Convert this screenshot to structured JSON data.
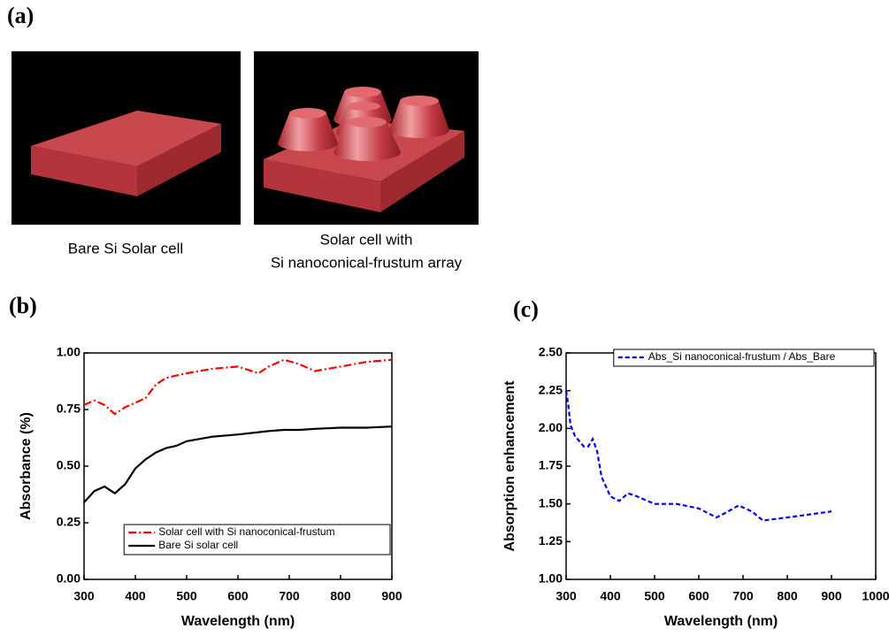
{
  "figure": {
    "panel_labels": [
      "(a)",
      "(b)",
      "(c)"
    ],
    "captions": [
      [
        "Bare Si Solar cell"
      ],
      [
        "Solar cell with",
        "Si nanoconical-frustum array"
      ]
    ]
  },
  "chart_data": [
    {
      "type": "line",
      "x_label": "Wavelength (nm)",
      "y_label": "Absorbance (%)",
      "x": [
        300,
        320,
        340,
        360,
        380,
        400,
        420,
        440,
        460,
        480,
        500,
        550,
        600,
        640,
        660,
        690,
        720,
        750,
        800,
        850,
        900
      ],
      "series": [
        {
          "name": "Solar cell with Si nanoconical-frustum",
          "color": "#ff0000",
          "dash": "dashdot",
          "values": [
            0.77,
            0.79,
            0.77,
            0.73,
            0.76,
            0.78,
            0.8,
            0.86,
            0.89,
            0.9,
            0.91,
            0.93,
            0.94,
            0.91,
            0.94,
            0.97,
            0.95,
            0.92,
            0.94,
            0.96,
            0.97
          ]
        },
        {
          "name": "Bare Si solar cell",
          "color": "#000000",
          "dash": "solid",
          "values": [
            0.34,
            0.39,
            0.41,
            0.38,
            0.42,
            0.49,
            0.53,
            0.56,
            0.58,
            0.59,
            0.61,
            0.63,
            0.64,
            0.65,
            0.655,
            0.66,
            0.66,
            0.665,
            0.67,
            0.67,
            0.675
          ]
        }
      ],
      "xlim": [
        300,
        900
      ],
      "xticks": [
        300,
        400,
        500,
        600,
        700,
        800,
        900
      ],
      "ylim": [
        0,
        1
      ],
      "yticks": [
        {
          "value": 0,
          "label": "0.00"
        },
        {
          "value": 0.25,
          "label": "0.25"
        },
        {
          "value": 0.5,
          "label": "0.50"
        },
        {
          "value": 0.75,
          "label": "0.75"
        },
        {
          "value": 1,
          "label": "1.00"
        }
      ],
      "legend": "lower right"
    },
    {
      "type": "line",
      "x_label": "Wavelength (nm)",
      "y_label": "Absorption enhancement",
      "x": [
        300,
        305,
        310,
        320,
        340,
        350,
        360,
        370,
        380,
        400,
        420,
        440,
        460,
        500,
        550,
        600,
        640,
        660,
        690,
        720,
        745,
        800,
        850,
        900
      ],
      "series": [
        {
          "name": "Abs_Si nanoconical-frustum / Abs_Bare",
          "color": "#0000ff",
          "dash": "dash",
          "values": [
            2.25,
            2.15,
            2.02,
            1.95,
            1.88,
            1.88,
            1.93,
            1.85,
            1.68,
            1.55,
            1.52,
            1.57,
            1.55,
            1.5,
            1.5,
            1.47,
            1.41,
            1.44,
            1.49,
            1.45,
            1.39,
            1.41,
            1.43,
            1.45
          ]
        }
      ],
      "xlim": [
        300,
        1000
      ],
      "xticks": [
        300,
        400,
        500,
        600,
        700,
        800,
        900,
        1000
      ],
      "ylim": [
        1,
        2.5
      ],
      "yticks": [
        {
          "value": 1,
          "label": "1.00"
        },
        {
          "value": 1.25,
          "label": "1.25"
        },
        {
          "value": 1.5,
          "label": "1.50"
        },
        {
          "value": 1.75,
          "label": "1.75"
        },
        {
          "value": 2,
          "label": "2.00"
        },
        {
          "value": 2.25,
          "label": "2.25"
        },
        {
          "value": 2.5,
          "label": "2.50"
        }
      ],
      "legend": "upper right"
    }
  ]
}
